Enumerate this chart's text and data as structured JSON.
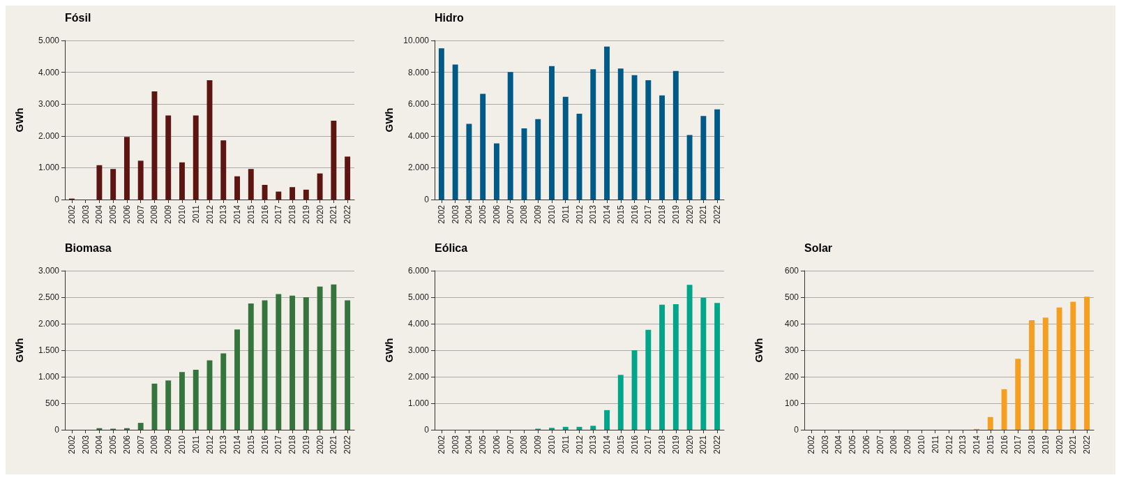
{
  "chart_data": [
    {
      "type": "bar",
      "title": "Fósil",
      "ylabel": "GWh",
      "color": "#5c1511",
      "grid": "y",
      "categories": [
        "2002",
        "2003",
        "2004",
        "2005",
        "2006",
        "2007",
        "2008",
        "2009",
        "2010",
        "2011",
        "2012",
        "2013",
        "2014",
        "2015",
        "2016",
        "2017",
        "2018",
        "2019",
        "2020",
        "2021",
        "2022"
      ],
      "values": [
        30,
        0,
        1080,
        960,
        1970,
        1220,
        3400,
        2640,
        1170,
        2640,
        3750,
        1860,
        730,
        960,
        460,
        250,
        390,
        310,
        820,
        2480,
        1350
      ],
      "ylim": [
        0,
        5000
      ],
      "yticks": [
        0,
        {
          "value": 1000,
          "label": "1.000"
        },
        {
          "value": 2000,
          "label": "2.000"
        },
        {
          "value": 3000,
          "label": "3.000"
        },
        {
          "value": 4000,
          "label": "4.000"
        },
        {
          "value": 5000,
          "label": "5.000"
        }
      ]
    },
    {
      "type": "bar",
      "title": "Hidro",
      "ylabel": "GWh",
      "color": "#005a87",
      "grid": "y",
      "categories": [
        "2002",
        "2003",
        "2004",
        "2005",
        "2006",
        "2007",
        "2008",
        "2009",
        "2010",
        "2011",
        "2012",
        "2013",
        "2014",
        "2015",
        "2016",
        "2017",
        "2018",
        "2019",
        "2020",
        "2021",
        "2022"
      ],
      "values": [
        9510,
        8490,
        4760,
        6650,
        3530,
        8010,
        4470,
        5050,
        8390,
        6460,
        5400,
        8190,
        9620,
        8230,
        7820,
        7500,
        6550,
        8080,
        4060,
        5250,
        5670
      ],
      "ylim": [
        0,
        10000
      ],
      "yticks": [
        0,
        {
          "value": 2000,
          "label": "2.000"
        },
        {
          "value": 4000,
          "label": "4.000"
        },
        {
          "value": 6000,
          "label": "6.000"
        },
        {
          "value": 8000,
          "label": "8.000"
        },
        {
          "value": 10000,
          "label": "10.000"
        }
      ]
    },
    {
      "type": "bar",
      "title": "Biomasa",
      "ylabel": "GWh",
      "color": "#35743c",
      "grid": "y",
      "categories": [
        "2002",
        "2003",
        "2004",
        "2005",
        "2006",
        "2007",
        "2008",
        "2009",
        "2010",
        "2011",
        "2012",
        "2013",
        "2014",
        "2015",
        "2016",
        "2017",
        "2018",
        "2019",
        "2020",
        "2021",
        "2022"
      ],
      "values": [
        0,
        0,
        30,
        20,
        30,
        130,
        870,
        930,
        1090,
        1130,
        1310,
        1440,
        1890,
        2380,
        2440,
        2560,
        2530,
        2500,
        2700,
        2740,
        2440
      ],
      "ylim": [
        0,
        3000
      ],
      "yticks": [
        0,
        500,
        {
          "value": 1000,
          "label": "1.000"
        },
        {
          "value": 1500,
          "label": "1.500"
        },
        {
          "value": 2000,
          "label": "2.000"
        },
        {
          "value": 2500,
          "label": "2.500"
        },
        {
          "value": 3000,
          "label": "3.000"
        }
      ]
    },
    {
      "type": "bar",
      "title": "Eólica",
      "ylabel": "GWh",
      "color": "#00a58a",
      "grid": "y",
      "categories": [
        "2002",
        "2003",
        "2004",
        "2005",
        "2006",
        "2007",
        "2008",
        "2009",
        "2010",
        "2011",
        "2012",
        "2013",
        "2014",
        "2015",
        "2016",
        "2017",
        "2018",
        "2019",
        "2020",
        "2021",
        "2022"
      ],
      "values": [
        0,
        0,
        0,
        0,
        0,
        0,
        0,
        40,
        70,
        110,
        110,
        150,
        740,
        2070,
        3000,
        3770,
        4720,
        4740,
        5470,
        4980,
        4780
      ],
      "ylim": [
        0,
        6000
      ],
      "yticks": [
        0,
        {
          "value": 1000,
          "label": "1.000"
        },
        {
          "value": 2000,
          "label": "2.000"
        },
        {
          "value": 3000,
          "label": "3.000"
        },
        {
          "value": 4000,
          "label": "4.000"
        },
        {
          "value": 5000,
          "label": "5.000"
        },
        {
          "value": 6000,
          "label": "6.000"
        }
      ]
    },
    {
      "type": "bar",
      "title": "Solar",
      "ylabel": "GWh",
      "color": "#f59e1f",
      "grid": "y",
      "categories": [
        "2002",
        "2003",
        "2004",
        "2005",
        "2006",
        "2007",
        "2008",
        "2009",
        "2010",
        "2011",
        "2012",
        "2013",
        "2014",
        "2015",
        "2016",
        "2017",
        "2018",
        "2019",
        "2020",
        "2021",
        "2022"
      ],
      "values": [
        0,
        0,
        0,
        0,
        0,
        0,
        0,
        0,
        0,
        0,
        0,
        0,
        3,
        48,
        153,
        268,
        413,
        423,
        461,
        483,
        502
      ],
      "ylim": [
        0,
        600
      ],
      "yticks": [
        0,
        100,
        200,
        300,
        400,
        500,
        600
      ]
    }
  ]
}
